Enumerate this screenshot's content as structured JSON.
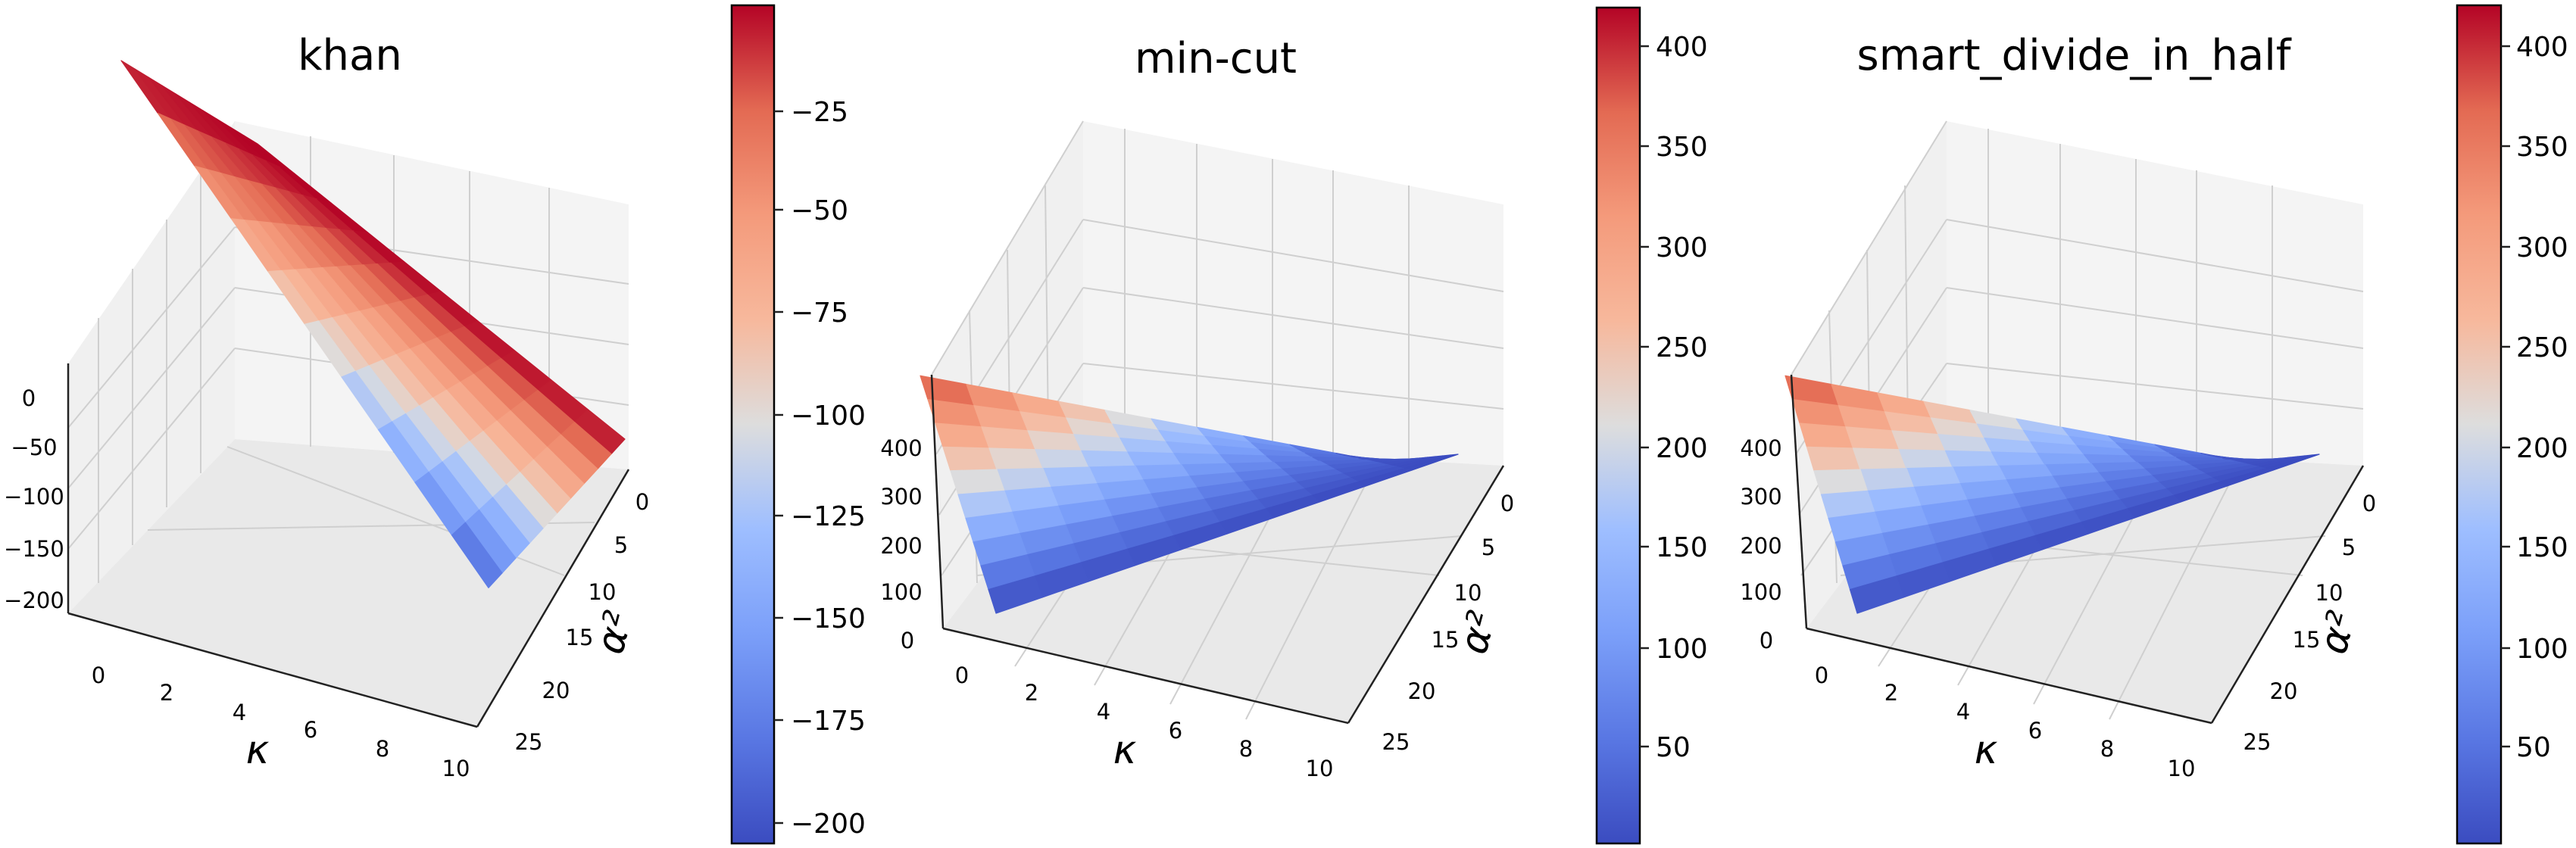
{
  "chart_data": [
    {
      "type": "surface3d",
      "title": "khan",
      "xlabel": "κ",
      "ylabel": "α²",
      "x_ticks": [
        "0",
        "2",
        "4",
        "6",
        "8",
        "10"
      ],
      "y_ticks": [
        "0",
        "5",
        "10",
        "15",
        "20",
        "25"
      ],
      "z_ticks": [
        "0",
        "−50",
        "−100",
        "−150",
        "−200"
      ],
      "xlim": [
        0,
        10
      ],
      "ylim": [
        0,
        25
      ],
      "zlim": [
        -210,
        0
      ],
      "surface": "z = -kappa * alpha2 * 0.78",
      "colorbar": {
        "ticks": [
          "−25",
          "−50",
          "−75",
          "−100",
          "−125",
          "−150",
          "−175",
          "−200"
        ],
        "range": [
          -205,
          -2
        ],
        "colormap": "coolwarm"
      }
    },
    {
      "type": "surface3d",
      "title": "min-cut",
      "xlabel": "κ",
      "ylabel": "α²",
      "x_ticks": [
        "0",
        "2",
        "4",
        "6",
        "8",
        "10"
      ],
      "y_ticks": [
        "0",
        "5",
        "10",
        "15",
        "20",
        "25"
      ],
      "z_ticks": [
        "0",
        "100",
        "200",
        "300",
        "400"
      ],
      "xlim": [
        0,
        10
      ],
      "ylim": [
        0,
        25
      ],
      "zlim": [
        0,
        420
      ],
      "surface": "z = kappa * alpha2 * 1.6",
      "colorbar": {
        "ticks": [
          "400",
          "350",
          "300",
          "250",
          "200",
          "150",
          "100",
          "50"
        ],
        "range": [
          2,
          418
        ],
        "colormap": "coolwarm"
      }
    },
    {
      "type": "surface3d",
      "title": "smart_divide_in_half",
      "xlabel": "κ",
      "ylabel": "α²",
      "x_ticks": [
        "0",
        "2",
        "4",
        "6",
        "8",
        "10"
      ],
      "y_ticks": [
        "0",
        "5",
        "10",
        "15",
        "20",
        "25"
      ],
      "z_ticks": [
        "0",
        "100",
        "200",
        "300",
        "400"
      ],
      "xlim": [
        0,
        10
      ],
      "ylim": [
        0,
        25
      ],
      "zlim": [
        0,
        420
      ],
      "surface": "z = kappa * alpha2 * 1.6",
      "colorbar": {
        "ticks": [
          "400",
          "350",
          "300",
          "250",
          "200",
          "150",
          "100",
          "50"
        ],
        "range": [
          2,
          418
        ],
        "colormap": "coolwarm"
      }
    }
  ],
  "colors": {
    "cmap_low": "#3b4cc0",
    "cmap_mid": "#dddddd",
    "cmap_high": "#b40426",
    "pane": "#f2f2f2",
    "grid": "#cfcfcf"
  }
}
